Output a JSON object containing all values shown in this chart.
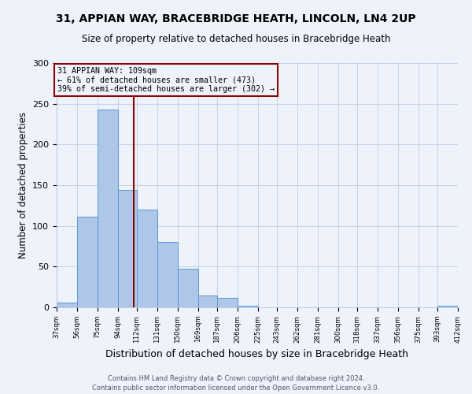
{
  "title": "31, APPIAN WAY, BRACEBRIDGE HEATH, LINCOLN, LN4 2UP",
  "subtitle": "Size of property relative to detached houses in Bracebridge Heath",
  "xlabel": "Distribution of detached houses by size in Bracebridge Heath",
  "ylabel": "Number of detached properties",
  "footer_line1": "Contains HM Land Registry data © Crown copyright and database right 2024.",
  "footer_line2": "Contains public sector information licensed under the Open Government Licence v3.0.",
  "bar_edges": [
    37,
    56,
    75,
    94,
    112,
    131,
    150,
    169,
    187,
    206,
    225,
    243,
    262,
    281,
    300,
    318,
    337,
    356,
    375,
    393,
    412
  ],
  "bar_heights": [
    6,
    111,
    243,
    144,
    120,
    80,
    47,
    15,
    12,
    2,
    0,
    0,
    0,
    0,
    0,
    0,
    0,
    0,
    0,
    2
  ],
  "bar_color": "#AEC6E8",
  "bar_edge_color": "#5B9BD5",
  "property_size": 109,
  "vline_color": "#8B0000",
  "annotation_text_line1": "31 APPIAN WAY: 109sqm",
  "annotation_text_line2": "← 61% of detached houses are smaller (473)",
  "annotation_text_line3": "39% of semi-detached houses are larger (302) →",
  "annotation_box_color": "#8B0000",
  "ylim": [
    0,
    300
  ],
  "yticks": [
    0,
    50,
    100,
    150,
    200,
    250,
    300
  ],
  "tick_labels": [
    "37sqm",
    "56sqm",
    "75sqm",
    "94sqm",
    "112sqm",
    "131sqm",
    "150sqm",
    "169sqm",
    "187sqm",
    "206sqm",
    "225sqm",
    "243sqm",
    "262sqm",
    "281sqm",
    "300sqm",
    "318sqm",
    "337sqm",
    "356sqm",
    "375sqm",
    "393sqm",
    "412sqm"
  ],
  "background_color": "#EEF2FA",
  "grid_color": "#C8D0E8"
}
